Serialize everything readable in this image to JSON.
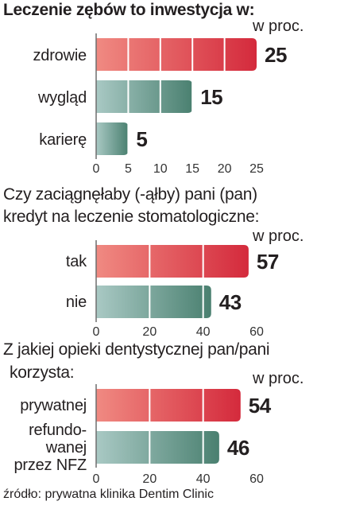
{
  "source": "źródło: prywatna klinika Dentim Clinic",
  "colors": {
    "hot_start": "#f08a82",
    "hot_end": "#d42a3c",
    "cool_start": "#a9c9c4",
    "cool_end": "#4a8070",
    "grid": "#ffffff",
    "axis": "#6e6e6e"
  },
  "chart_data": [
    {
      "type": "bar",
      "title": "Leczenie zębów to inwestycja w:",
      "unit": "w proc.",
      "categories": [
        "zdrowie",
        "wygląd",
        "karierę"
      ],
      "values": [
        25,
        15,
        5
      ],
      "value_labels": [
        "25",
        "15",
        "5"
      ],
      "xlim": [
        0,
        25
      ],
      "x_ticks": [
        "0",
        "5",
        "10",
        "15",
        "20",
        "25"
      ],
      "orientation": "horizontal"
    },
    {
      "type": "bar",
      "title_lines": [
        "Czy zaciągnęłaby (-ąłby) pani (pan)",
        "kredyt na leczenie stomatologiczne:"
      ],
      "unit": "w proc.",
      "categories": [
        "tak",
        "nie"
      ],
      "values": [
        57,
        43
      ],
      "value_labels": [
        "57",
        "43"
      ],
      "xlim": [
        0,
        60
      ],
      "x_ticks": [
        "0",
        "20",
        "40",
        "60"
      ],
      "orientation": "horizontal"
    },
    {
      "type": "bar",
      "title_lines": [
        "Z jakiej opieki dentystycznej pan/pani",
        "korzysta:"
      ],
      "unit": "w proc.",
      "categories": [
        "prywatnej",
        "refundowanej przez NFZ"
      ],
      "category_lines": [
        [
          "prywatnej"
        ],
        [
          "refundo-",
          "wanej",
          "przez NFZ"
        ]
      ],
      "values": [
        54,
        46
      ],
      "value_labels": [
        "54",
        "46"
      ],
      "xlim": [
        0,
        60
      ],
      "x_ticks": [
        "0",
        "20",
        "40",
        "60"
      ],
      "orientation": "horizontal"
    }
  ]
}
